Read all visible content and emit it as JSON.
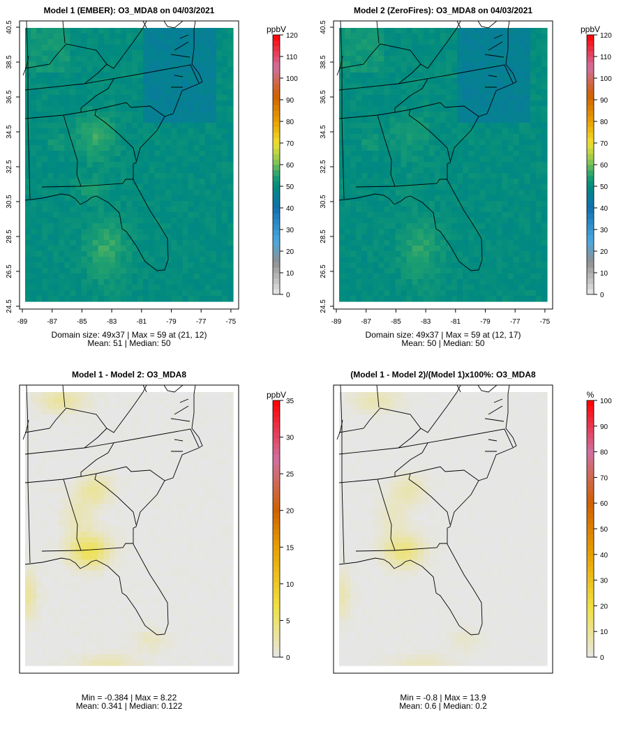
{
  "chart_data": [
    {
      "type": "heatmap",
      "title": "Model 1 (EMBER): O3_MDA8 on 04/03/2021",
      "unit": "ppbV",
      "xticks": [
        "-89",
        "-87",
        "-85",
        "-83",
        "-81",
        "-79",
        "-77",
        "-75"
      ],
      "yticks": [
        "40.5",
        "38.5",
        "36.5",
        "34.5",
        "32.5",
        "30.5",
        "28.5",
        "26.5",
        "24.5"
      ],
      "colorbar_ticks": [
        "0",
        "10",
        "20",
        "30",
        "40",
        "50",
        "60",
        "70",
        "80",
        "90",
        "100",
        "110",
        "120"
      ],
      "colorbar_range": [
        0,
        120
      ],
      "stats_line1": "Domain size: 49x37 | Max = 59 at (21, 12)",
      "stats_line2": "Mean: 51 |  Median: 50",
      "grid": [
        49,
        37
      ],
      "max": 59,
      "mean": 51,
      "median": 50
    },
    {
      "type": "heatmap",
      "title": "Model 2 (ZeroFires): O3_MDA8 on 04/03/2021",
      "unit": "ppbV",
      "xticks": [
        "-89",
        "-87",
        "-85",
        "-83",
        "-81",
        "-79",
        "-77",
        "-75"
      ],
      "yticks": [
        "40.5",
        "38.5",
        "36.5",
        "34.5",
        "32.5",
        "30.5",
        "28.5",
        "26.5",
        "24.5"
      ],
      "colorbar_ticks": [
        "0",
        "10",
        "20",
        "30",
        "40",
        "50",
        "60",
        "70",
        "80",
        "90",
        "100",
        "110",
        "120"
      ],
      "colorbar_range": [
        0,
        120
      ],
      "stats_line1": "Domain size: 49x37 | Max = 59 at (12, 17)",
      "stats_line2": "Mean: 50 |  Median: 50",
      "grid": [
        49,
        37
      ],
      "max": 59,
      "mean": 50,
      "median": 50
    },
    {
      "type": "heatmap",
      "title": "Model 1 - Model 2: O3_MDA8",
      "unit": "ppbV",
      "colorbar_ticks": [
        "0",
        "5",
        "10",
        "15",
        "20",
        "25",
        "30",
        "35"
      ],
      "colorbar_range": [
        0,
        35
      ],
      "stats_line1": "Min = -0.384 | Max = 8.22",
      "stats_line2": "Mean: 0.341 |  Median: 0.122",
      "min": -0.384,
      "max": 8.22,
      "mean": 0.341,
      "median": 0.122
    },
    {
      "type": "heatmap",
      "title": "(Model 1 - Model 2)/(Model 1)x100%: O3_MDA8",
      "unit": "%",
      "colorbar_ticks": [
        "0",
        "10",
        "20",
        "30",
        "40",
        "50",
        "60",
        "70",
        "80",
        "90",
        "100"
      ],
      "colorbar_range": [
        0,
        100
      ],
      "stats_line1": "Min = -0.8 | Max = 13.9",
      "stats_line2": "Mean: 0.6 |  Median: 0.2",
      "min": -0.8,
      "max": 13.9,
      "mean": 0.6,
      "median": 0.2
    }
  ],
  "colors": {
    "ozone_scale": [
      "#e8e8e8",
      "#909090",
      "#4aa8e0",
      "#1070b0",
      "#008a80",
      "#20a070",
      "#90c850",
      "#f0e030",
      "#e8a000",
      "#d06000",
      "#d070a0",
      "#ff0000"
    ],
    "diff_scale": [
      "#e6e6e6",
      "#f0e040",
      "#e8a000",
      "#d06000",
      "#d070a0",
      "#ff0000"
    ]
  }
}
